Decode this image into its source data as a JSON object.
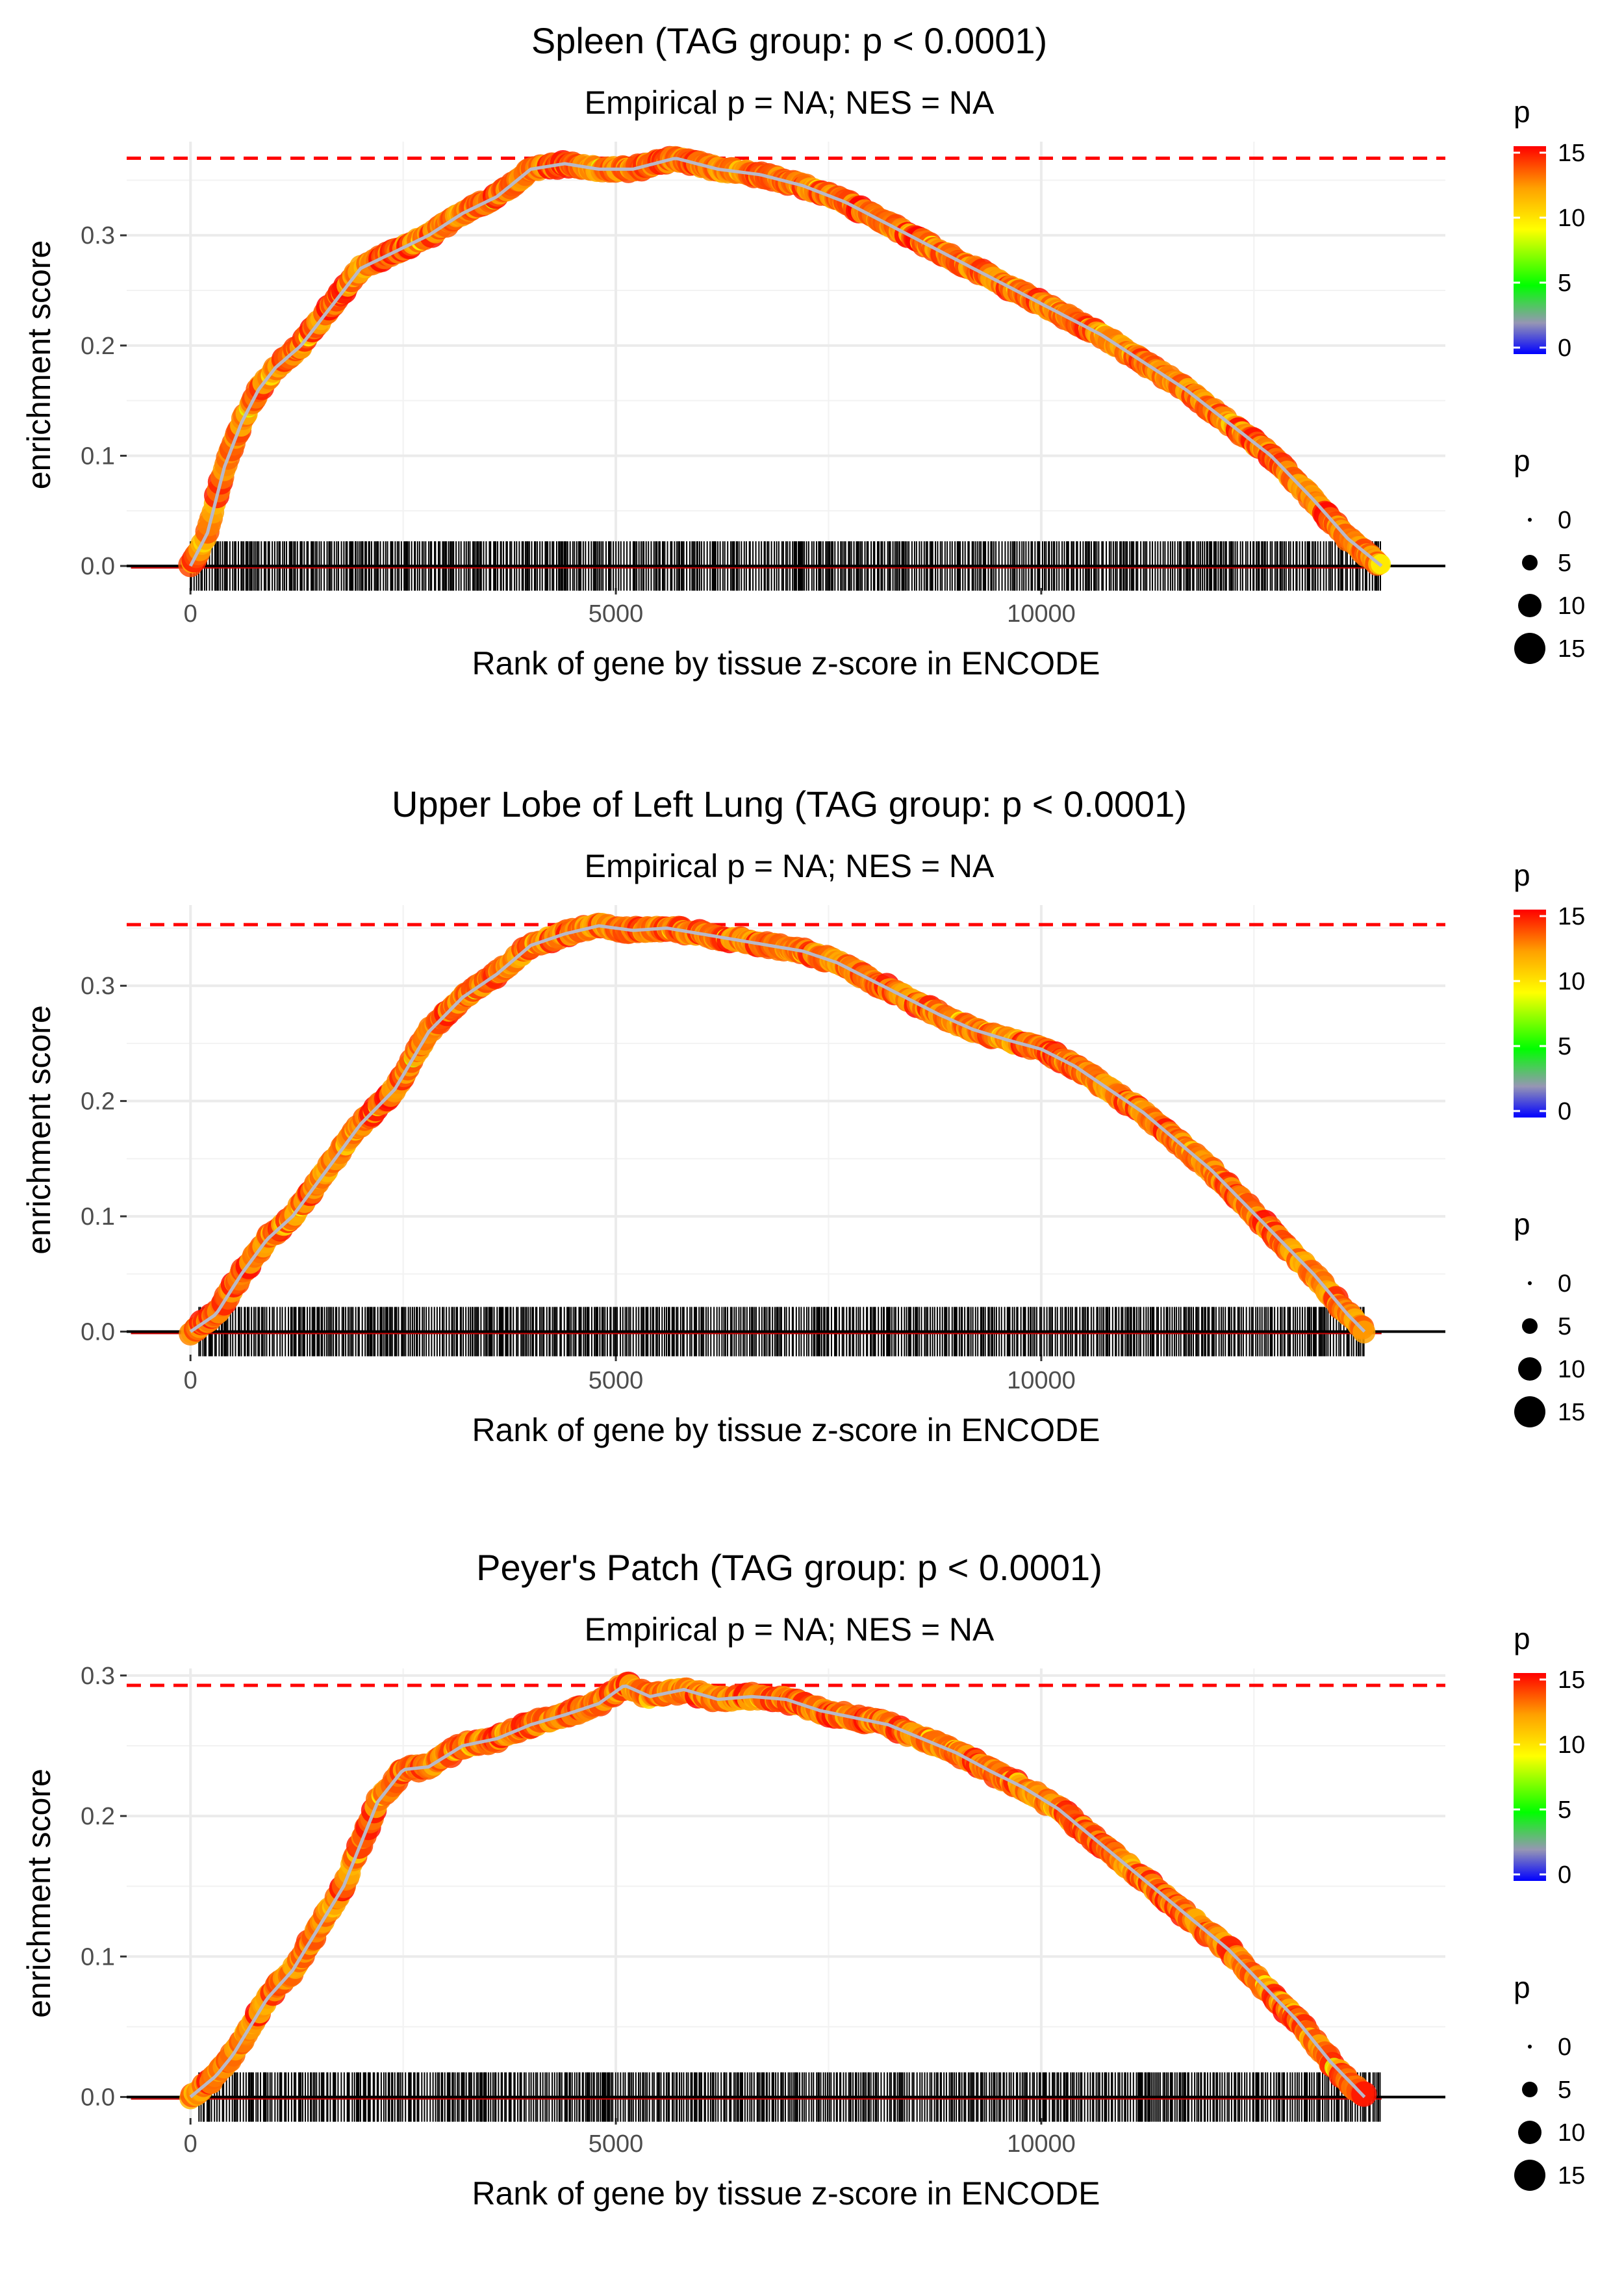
{
  "chart_data": [
    {
      "type": "scatter",
      "title": "Spleen (TAG group: p < 0.0001)",
      "subtitle": "Empirical p = NA; NES = NA",
      "xlabel": "Rank of gene by tissue z-score in ENCODE",
      "ylabel": "enrichment score",
      "xlim": [
        -750,
        14750
      ],
      "ylim": [
        -0.02,
        0.385
      ],
      "x_ticks": [
        0,
        5000,
        10000
      ],
      "y_ticks": [
        0.0,
        0.1,
        0.2,
        0.3
      ],
      "max_es": 0.37,
      "curve": {
        "x": [
          0,
          200,
          400,
          600,
          800,
          1000,
          1300,
          1600,
          2000,
          2400,
          2800,
          3200,
          3600,
          4000,
          4400,
          4800,
          5200,
          5700,
          6200,
          6700,
          7200,
          7700,
          8200,
          8700,
          9200,
          9700,
          10200,
          10700,
          11200,
          11700,
          12200,
          12700,
          13200,
          13600,
          14000
        ],
        "y": [
          0.0,
          0.03,
          0.09,
          0.13,
          0.16,
          0.18,
          0.2,
          0.23,
          0.27,
          0.285,
          0.3,
          0.32,
          0.335,
          0.36,
          0.365,
          0.36,
          0.36,
          0.37,
          0.36,
          0.355,
          0.345,
          0.33,
          0.31,
          0.29,
          0.27,
          0.25,
          0.23,
          0.21,
          0.185,
          0.16,
          0.13,
          0.1,
          0.06,
          0.025,
          0.0
        ]
      },
      "gene_rank_range": [
        0,
        14000
      ],
      "color_legend": {
        "title": "p",
        "ticks": [
          0,
          5,
          10,
          15
        ]
      },
      "size_legend": {
        "title": "p",
        "values": [
          0,
          5,
          10,
          15
        ]
      }
    },
    {
      "type": "scatter",
      "title": "Upper Lobe of Left Lung (TAG group: p < 0.0001)",
      "subtitle": "Empirical p = NA; NES = NA",
      "xlabel": "Rank of gene by tissue z-score in ENCODE",
      "ylabel": "enrichment score",
      "xlim": [
        -750,
        14750
      ],
      "ylim": [
        -0.02,
        0.37
      ],
      "x_ticks": [
        0,
        5000,
        10000
      ],
      "y_ticks": [
        0.0,
        0.1,
        0.2,
        0.3
      ],
      "max_es": 0.353,
      "curve": {
        "x": [
          0,
          300,
          600,
          900,
          1200,
          1600,
          2000,
          2400,
          2800,
          3200,
          3600,
          4000,
          4400,
          4800,
          5200,
          5600,
          6000,
          6400,
          6800,
          7200,
          7600,
          8000,
          8400,
          8800,
          9200,
          9600,
          10000,
          10400,
          10800,
          11200,
          11600,
          12000,
          12400,
          12800,
          13200,
          13600,
          13800
        ],
        "y": [
          0.0,
          0.015,
          0.05,
          0.08,
          0.1,
          0.14,
          0.18,
          0.21,
          0.26,
          0.29,
          0.31,
          0.335,
          0.345,
          0.352,
          0.348,
          0.35,
          0.345,
          0.34,
          0.335,
          0.33,
          0.32,
          0.305,
          0.29,
          0.275,
          0.262,
          0.253,
          0.245,
          0.23,
          0.21,
          0.19,
          0.165,
          0.14,
          0.11,
          0.08,
          0.05,
          0.015,
          0.0
        ]
      },
      "gene_rank_range": [
        100,
        13800
      ],
      "color_legend": {
        "title": "p",
        "ticks": [
          0,
          5,
          10,
          15
        ]
      },
      "size_legend": {
        "title": "p",
        "values": [
          0,
          5,
          10,
          15
        ]
      }
    },
    {
      "type": "scatter",
      "title": "Peyer's Patch (TAG group: p < 0.0001)",
      "subtitle": "Empirical p = NA; NES = NA",
      "xlabel": "Rank of gene by tissue z-score in ENCODE",
      "ylabel": "enrichment score",
      "xlim": [
        -750,
        14750
      ],
      "ylim": [
        -0.015,
        0.305
      ],
      "x_ticks": [
        0,
        5000,
        10000
      ],
      "y_ticks": [
        0.0,
        0.1,
        0.2,
        0.3
      ],
      "max_es": 0.293,
      "curve": {
        "x": [
          0,
          300,
          500,
          700,
          900,
          1200,
          1500,
          1800,
          2000,
          2200,
          2500,
          2800,
          3200,
          3600,
          4000,
          4400,
          4800,
          5100,
          5400,
          5800,
          6200,
          6600,
          7000,
          7400,
          7800,
          8200,
          8600,
          9000,
          9400,
          9800,
          10200,
          10600,
          11000,
          11400,
          11800,
          12200,
          12600,
          13000,
          13400,
          13800
        ],
        "y": [
          0.0,
          0.015,
          0.03,
          0.05,
          0.07,
          0.09,
          0.12,
          0.15,
          0.18,
          0.21,
          0.233,
          0.235,
          0.25,
          0.255,
          0.265,
          0.272,
          0.28,
          0.293,
          0.285,
          0.29,
          0.283,
          0.285,
          0.283,
          0.275,
          0.27,
          0.265,
          0.255,
          0.245,
          0.232,
          0.22,
          0.205,
          0.185,
          0.165,
          0.145,
          0.125,
          0.105,
          0.08,
          0.055,
          0.025,
          0.0
        ]
      },
      "gene_rank_range": [
        100,
        14000
      ],
      "color_legend": {
        "title": "p",
        "ticks": [
          0,
          5,
          10,
          15
        ]
      },
      "size_legend": {
        "title": "p",
        "values": [
          0,
          5,
          10,
          15
        ]
      }
    }
  ]
}
